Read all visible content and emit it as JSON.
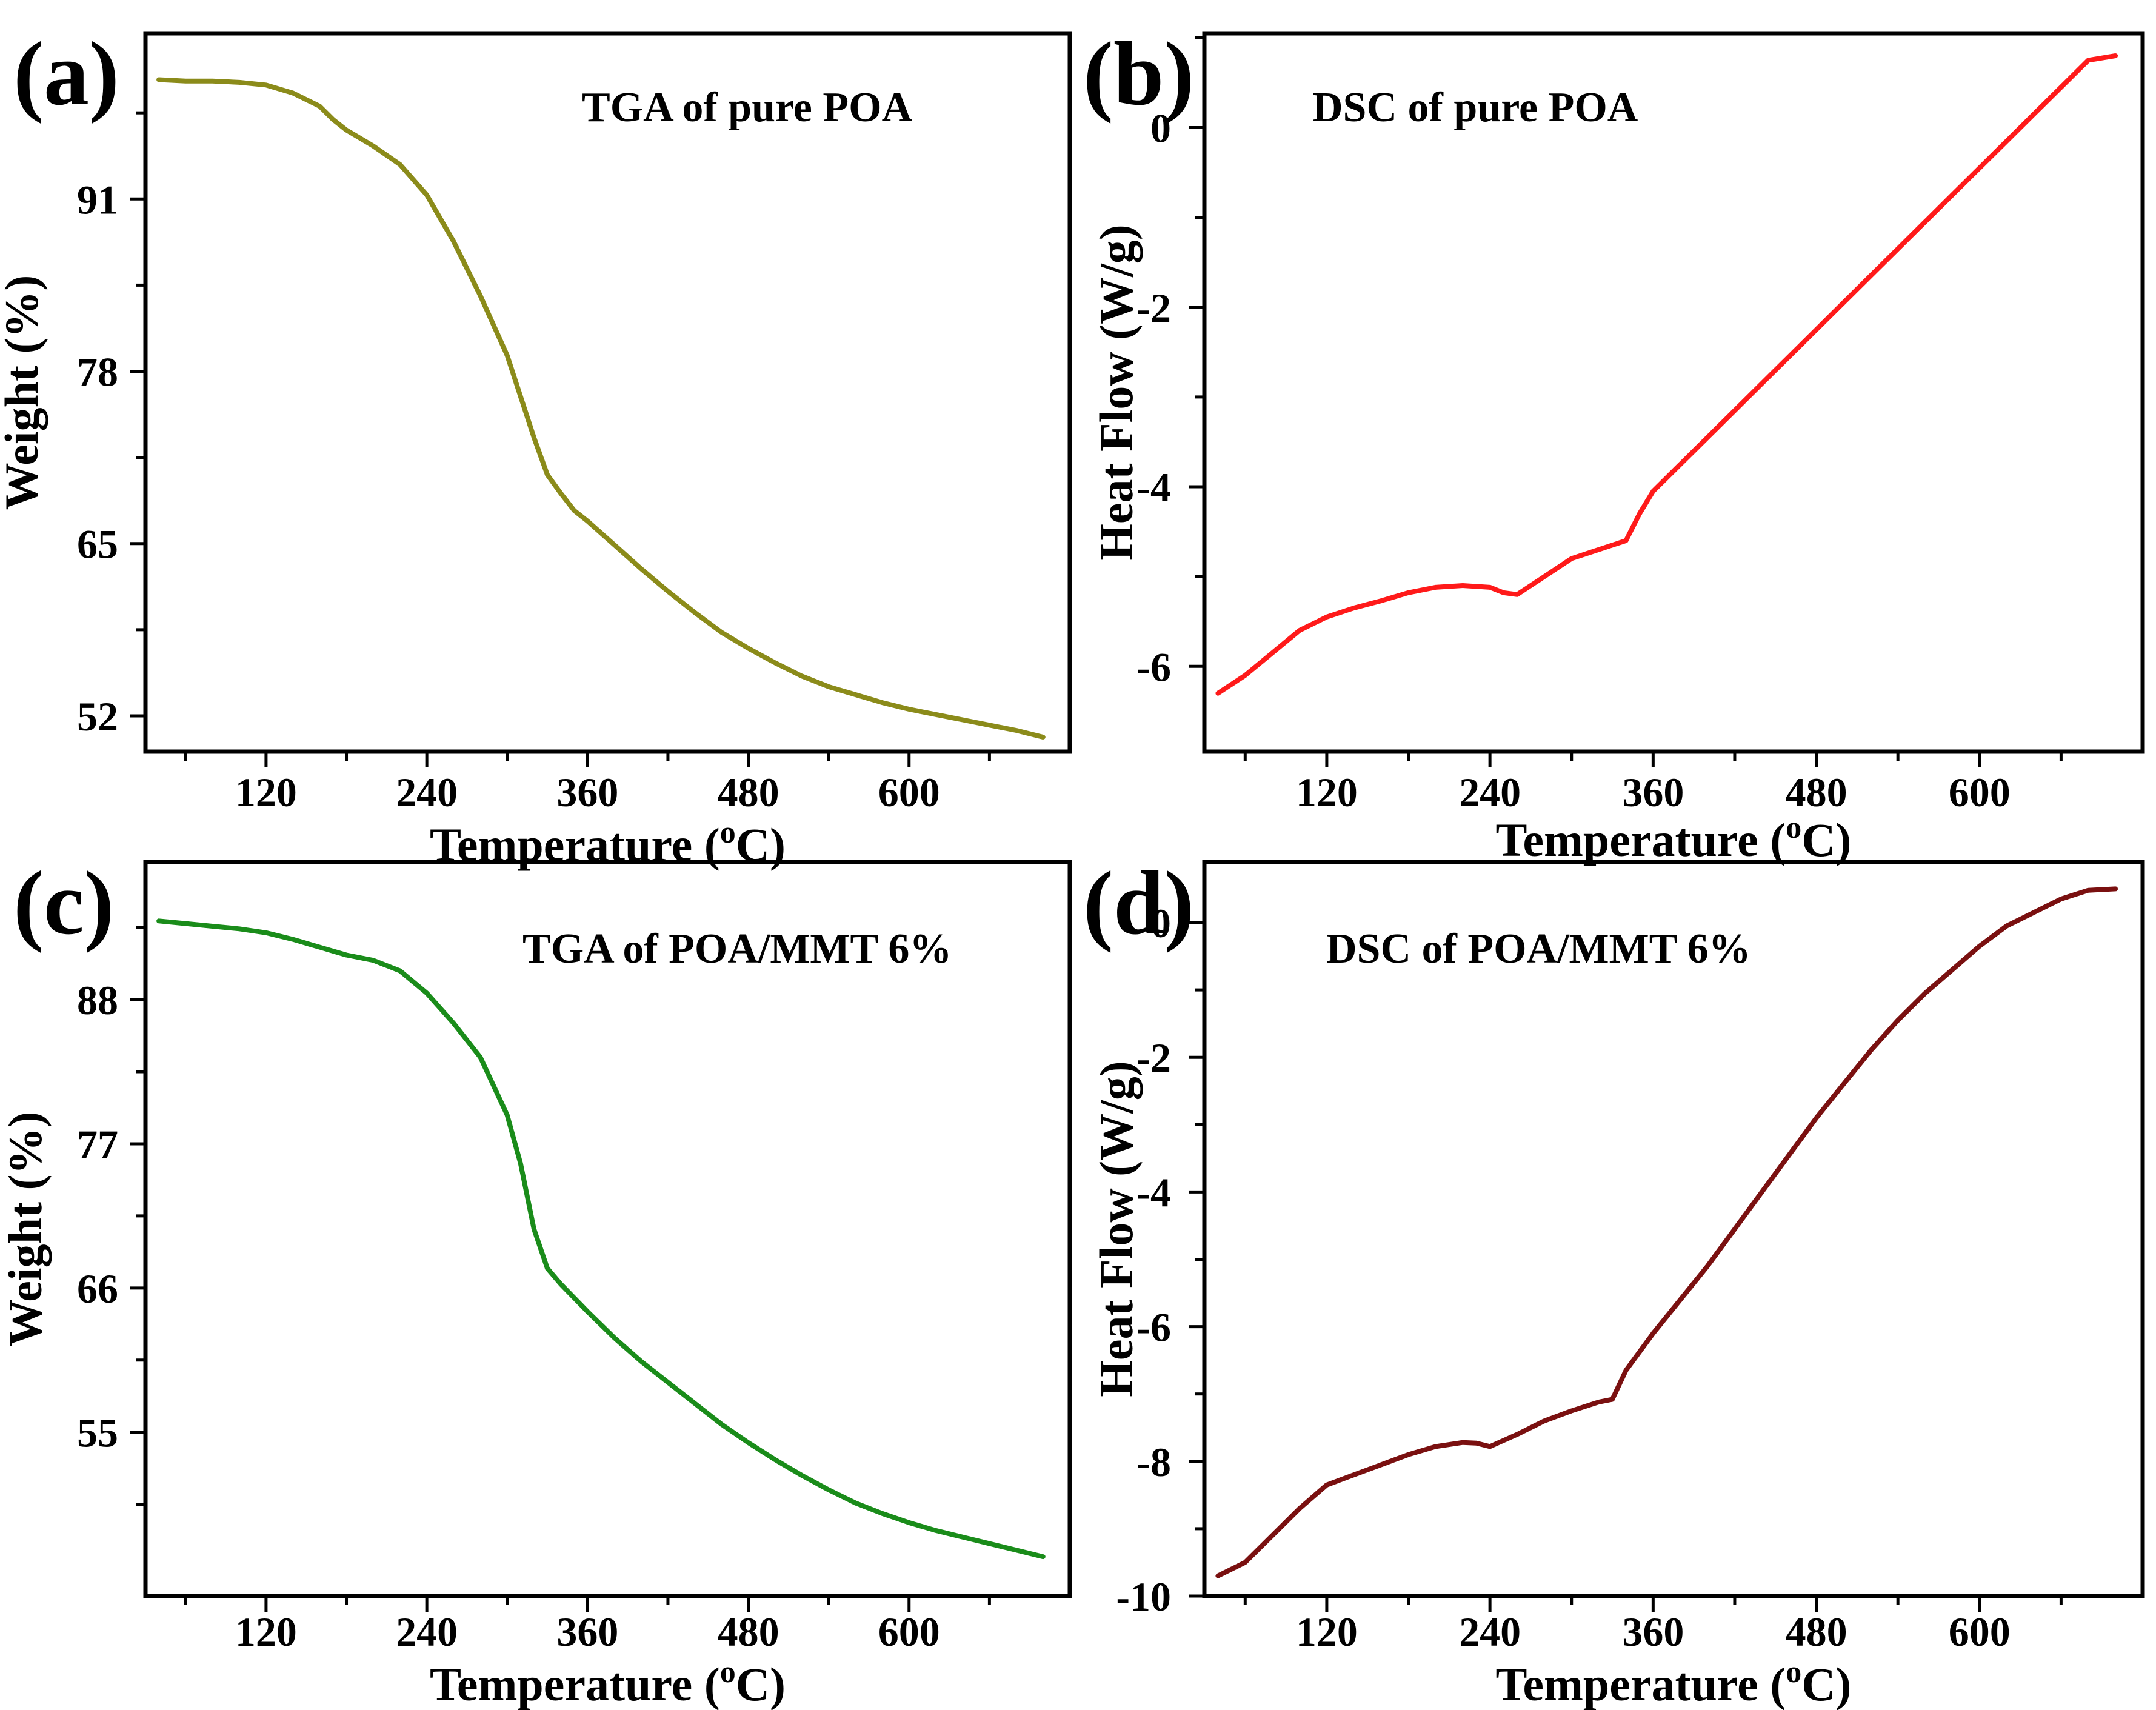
{
  "chart_data": [
    {
      "panel": "(a)",
      "type": "line",
      "annotation": "TGA of pure POA",
      "xlabel": "Temperature (oC)",
      "xlabel_main": "Temperature (",
      "xlabel_sup": "o",
      "xlabel_end": "C)",
      "ylabel": "Weight (%)",
      "xlim": [
        30,
        720
      ],
      "ylim": [
        49.3,
        103.5
      ],
      "xticks": [
        120,
        240,
        360,
        480,
        600
      ],
      "yticks": [
        52,
        65,
        78,
        91
      ],
      "series": [
        {
          "color": "#8b8b1a",
          "x": [
            40,
            60,
            80,
            100,
            120,
            140,
            160,
            170,
            180,
            200,
            220,
            240,
            260,
            280,
            300,
            320,
            330,
            340,
            350,
            360,
            380,
            400,
            420,
            440,
            460,
            480,
            500,
            520,
            540,
            560,
            580,
            600,
            620,
            640,
            660,
            680,
            700
          ],
          "y": [
            100.0,
            99.9,
            99.9,
            99.8,
            99.6,
            99.0,
            98.0,
            97.0,
            96.2,
            95.0,
            93.6,
            91.3,
            87.8,
            83.7,
            79.2,
            73.0,
            70.2,
            68.8,
            67.5,
            66.7,
            64.9,
            63.1,
            61.4,
            59.8,
            58.3,
            57.1,
            56.0,
            55.0,
            54.2,
            53.6,
            53.0,
            52.5,
            52.1,
            51.7,
            51.3,
            50.9,
            50.4
          ]
        }
      ]
    },
    {
      "panel": "(b)",
      "type": "line",
      "annotation": "DSC of pure POA",
      "xlabel": "Temperature (oC)",
      "xlabel_main": "Temperature (",
      "xlabel_sup": "o",
      "xlabel_end": "C)",
      "ylabel": "Heat Flow (W/g)",
      "xlim": [
        30,
        720
      ],
      "ylim": [
        -6.95,
        1.05
      ],
      "xticks": [
        120,
        240,
        360,
        480,
        600
      ],
      "yticks": [
        -6,
        -4,
        -2,
        0
      ],
      "series": [
        {
          "color": "#ff1a1a",
          "x": [
            40,
            60,
            80,
            100,
            120,
            140,
            160,
            180,
            200,
            220,
            240,
            250,
            260,
            280,
            300,
            320,
            340,
            350,
            360,
            380,
            400,
            420,
            440,
            460,
            480,
            500,
            520,
            540,
            560,
            580,
            600,
            620,
            640,
            660,
            680,
            700
          ],
          "y": [
            -6.3,
            -6.1,
            -5.85,
            -5.6,
            -5.45,
            -5.35,
            -5.27,
            -5.18,
            -5.12,
            -5.1,
            -5.12,
            -5.18,
            -5.2,
            -5.0,
            -4.8,
            -4.7,
            -4.6,
            -4.3,
            -4.05,
            -3.75,
            -3.45,
            -3.15,
            -2.85,
            -2.55,
            -2.25,
            -1.95,
            -1.65,
            -1.35,
            -1.05,
            -0.75,
            -0.45,
            -0.15,
            0.15,
            0.45,
            0.75,
            0.8
          ]
        }
      ]
    },
    {
      "panel": "(c)",
      "type": "line",
      "annotation": "TGA of POA/MMT 6%",
      "xlabel": "Temperature (oC)",
      "xlabel_main": "Temperature (",
      "xlabel_sup": "o",
      "xlabel_end": "C)",
      "ylabel": "Weight (%)",
      "xlim": [
        30,
        720
      ],
      "ylim": [
        42.5,
        98.5
      ],
      "xticks": [
        120,
        240,
        360,
        480,
        600
      ],
      "yticks": [
        55,
        66,
        77,
        88
      ],
      "series": [
        {
          "color": "#1a8c1a",
          "x": [
            40,
            60,
            80,
            100,
            120,
            140,
            160,
            180,
            200,
            220,
            240,
            260,
            280,
            300,
            310,
            320,
            330,
            340,
            360,
            380,
            400,
            420,
            440,
            460,
            480,
            500,
            520,
            540,
            560,
            580,
            600,
            620,
            640,
            660,
            680,
            700
          ],
          "y": [
            94.0,
            93.8,
            93.6,
            93.4,
            93.1,
            92.6,
            92.0,
            91.4,
            91.0,
            90.2,
            88.5,
            86.2,
            83.6,
            79.2,
            75.5,
            70.5,
            67.5,
            66.3,
            64.2,
            62.2,
            60.4,
            58.8,
            57.2,
            55.6,
            54.2,
            52.9,
            51.7,
            50.6,
            49.6,
            48.8,
            48.1,
            47.5,
            47.0,
            46.5,
            46.0,
            45.5
          ]
        }
      ]
    },
    {
      "panel": "(d)",
      "type": "line",
      "annotation": "DSC of POA/MMT 6%",
      "xlabel": "Temperature (oC)",
      "xlabel_main": "Temperature (",
      "xlabel_sup": "o",
      "xlabel_end": "C)",
      "ylabel": "Heat Flow (W/g)",
      "xlim": [
        30,
        720
      ],
      "ylim": [
        -10.0,
        0.9
      ],
      "xticks": [
        120,
        240,
        360,
        480,
        600
      ],
      "yticks": [
        -10,
        -8,
        -6,
        -4,
        -2,
        0
      ],
      "series": [
        {
          "color": "#7a1010",
          "x": [
            40,
            60,
            80,
            100,
            120,
            140,
            160,
            180,
            200,
            220,
            230,
            240,
            260,
            280,
            300,
            320,
            330,
            340,
            360,
            380,
            400,
            420,
            440,
            460,
            480,
            500,
            520,
            540,
            560,
            580,
            600,
            620,
            640,
            660,
            680,
            700
          ],
          "y": [
            -9.7,
            -9.5,
            -9.1,
            -8.7,
            -8.35,
            -8.2,
            -8.05,
            -7.9,
            -7.78,
            -7.72,
            -7.73,
            -7.78,
            -7.6,
            -7.4,
            -7.25,
            -7.12,
            -7.08,
            -6.65,
            -6.1,
            -5.6,
            -5.1,
            -4.55,
            -4.0,
            -3.45,
            -2.9,
            -2.4,
            -1.9,
            -1.45,
            -1.05,
            -0.7,
            -0.35,
            -0.05,
            0.15,
            0.35,
            0.48,
            0.5
          ]
        }
      ]
    }
  ]
}
